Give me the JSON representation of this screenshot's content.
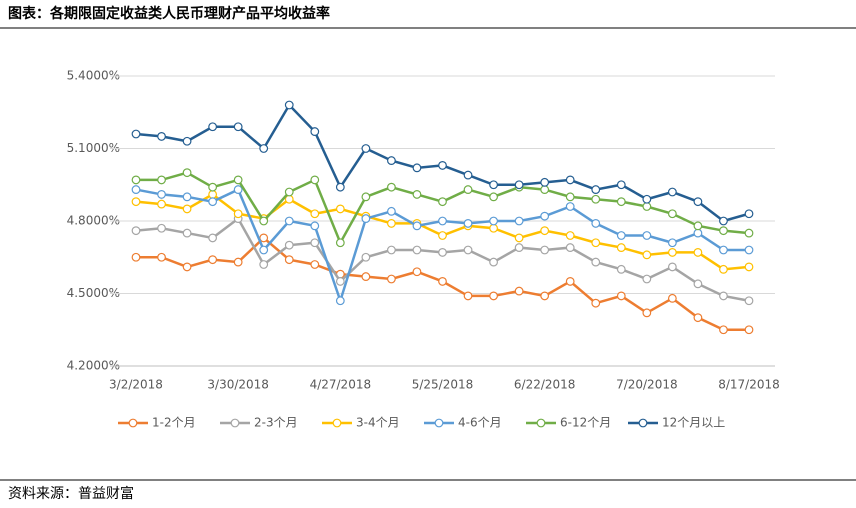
{
  "chart_data": {
    "type": "line",
    "title": "图表：各期限固定收益类人民币理财产品平均收益率",
    "source": "资料来源：普益财富",
    "categories": [
      "3/2/2018",
      null,
      null,
      null,
      "3/30/2018",
      null,
      null,
      null,
      "4/27/2018",
      null,
      null,
      null,
      "5/25/2018",
      null,
      null,
      null,
      "6/22/2018",
      null,
      null,
      null,
      "7/20/2018",
      null,
      null,
      null,
      "8/17/2018"
    ],
    "ylim": [
      4.2,
      5.4
    ],
    "yticks": [
      {
        "value": 4.2,
        "label": "4.2000%"
      },
      {
        "value": 4.5,
        "label": "4.5000%"
      },
      {
        "value": 4.8,
        "label": "4.8000%"
      },
      {
        "value": 5.1,
        "label": "5.1000%"
      },
      {
        "value": 5.4,
        "label": "5.4000%"
      }
    ],
    "grid": true,
    "legend": "bottom",
    "series": [
      {
        "name": "1-2个月",
        "color": "#ed7d31",
        "values": [
          4.65,
          4.65,
          4.61,
          4.64,
          4.63,
          4.73,
          4.64,
          4.62,
          4.58,
          4.57,
          4.56,
          4.59,
          4.55,
          4.49,
          4.49,
          4.51,
          4.49,
          4.55,
          4.46,
          4.49,
          4.42,
          4.48,
          4.4,
          4.35,
          4.35
        ]
      },
      {
        "name": "2-3个月",
        "color": "#a5a5a5",
        "values": [
          4.76,
          4.77,
          4.75,
          4.73,
          4.81,
          4.62,
          4.7,
          4.71,
          4.55,
          4.65,
          4.68,
          4.68,
          4.67,
          4.68,
          4.63,
          4.69,
          4.68,
          4.69,
          4.63,
          4.6,
          4.56,
          4.61,
          4.54,
          4.49,
          4.47
        ]
      },
      {
        "name": "3-4个月",
        "color": "#ffc000",
        "values": [
          4.88,
          4.87,
          4.85,
          4.91,
          4.83,
          4.81,
          4.89,
          4.83,
          4.85,
          4.82,
          4.79,
          4.79,
          4.74,
          4.78,
          4.77,
          4.73,
          4.76,
          4.74,
          4.71,
          4.69,
          4.66,
          4.67,
          4.67,
          4.6,
          4.61
        ]
      },
      {
        "name": "4-6个月",
        "color": "#5b9bd5",
        "values": [
          4.93,
          4.91,
          4.9,
          4.88,
          4.93,
          4.68,
          4.8,
          4.78,
          4.47,
          4.81,
          4.84,
          4.78,
          4.8,
          4.79,
          4.8,
          4.8,
          4.82,
          4.86,
          4.79,
          4.74,
          4.74,
          4.71,
          4.75,
          4.68,
          4.68
        ]
      },
      {
        "name": "6-12个月",
        "color": "#70ad47",
        "values": [
          4.97,
          4.97,
          5.0,
          4.94,
          4.97,
          4.8,
          4.92,
          4.97,
          4.71,
          4.9,
          4.94,
          4.91,
          4.88,
          4.93,
          4.9,
          4.94,
          4.93,
          4.9,
          4.89,
          4.88,
          4.86,
          4.83,
          4.78,
          4.76,
          4.75
        ]
      },
      {
        "name": "12个月以上",
        "color": "#255e91",
        "values": [
          5.16,
          5.15,
          5.13,
          5.19,
          5.19,
          5.1,
          5.28,
          5.17,
          4.94,
          5.1,
          5.05,
          5.02,
          5.03,
          4.99,
          4.95,
          4.95,
          4.96,
          4.97,
          4.93,
          4.95,
          4.89,
          4.92,
          4.88,
          4.8,
          4.83
        ]
      }
    ]
  }
}
